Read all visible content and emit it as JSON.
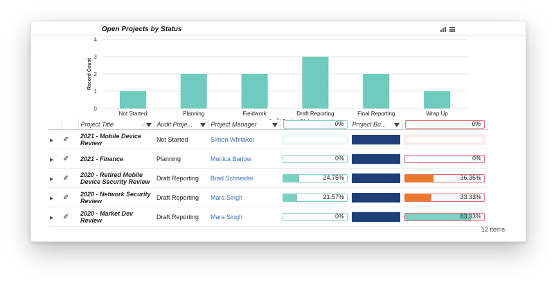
{
  "chart": {
    "title": "Open Projects by Status"
  },
  "chart_data": {
    "type": "bar",
    "title": "Open Projects by Status",
    "xlabel": "Audit Project Status",
    "ylabel": "Record Count",
    "categories": [
      "Not Started",
      "Planning",
      "Fieldwork",
      "Draft Reporting",
      "Final Reporting",
      "Wrap Up"
    ],
    "values": [
      1,
      2,
      2,
      3,
      2,
      1
    ],
    "yticks": [
      0,
      1,
      2,
      3,
      4
    ],
    "ylim": [
      0,
      4
    ],
    "grid": true,
    "color": "#6fcbbd"
  },
  "colors": {
    "teal": "#7fcfc5",
    "orange": "#ea7a2b",
    "navy": "#1f3f7a",
    "link": "#3a6fb5"
  },
  "grid": {
    "columns": {
      "title": "Project Title",
      "status": "Audit Proje...",
      "pm": "Project Manager",
      "progress": "",
      "budget": "Project Bu...",
      "last": ""
    },
    "header_progress": {
      "value": "0%",
      "fraction": 0
    },
    "header_last": {
      "value": "0%",
      "fraction": 0
    },
    "rows": [
      {
        "title": "2021 - Mobile Device Review",
        "status": "Not Started",
        "pm": "Simon Whitaker",
        "progress": "",
        "progress_frac": 0,
        "last": "",
        "last_frac": 0,
        "blurred": true
      },
      {
        "title": "2021 - Finance",
        "status": "Planning",
        "pm": "Monica Barlow",
        "progress": "0%",
        "progress_frac": 0,
        "last": "0%",
        "last_frac": 0,
        "blurred": false
      },
      {
        "title": "2020 - Retired Mobile Device Security Review",
        "status": "Draft Reporting",
        "pm": "Brad Schneider",
        "progress": "24.75%",
        "progress_frac": 0.2475,
        "last": "36.36%",
        "last_frac": 0.3636,
        "blurred": false
      },
      {
        "title": "2020 - Network Security Review",
        "status": "Draft Reporting",
        "pm": "Mara Singh",
        "progress": "21.57%",
        "progress_frac": 0.2157,
        "last": "33.33%",
        "last_frac": 0.3333,
        "blurred": false
      },
      {
        "title": "2020 - Market Dev Review",
        "status": "Draft Reporting",
        "pm": "Mara Singh",
        "progress": "0%",
        "progress_frac": 0,
        "last": "83.33%",
        "last_frac": 0.8333,
        "blurred": false
      }
    ],
    "footer": "12 items"
  }
}
